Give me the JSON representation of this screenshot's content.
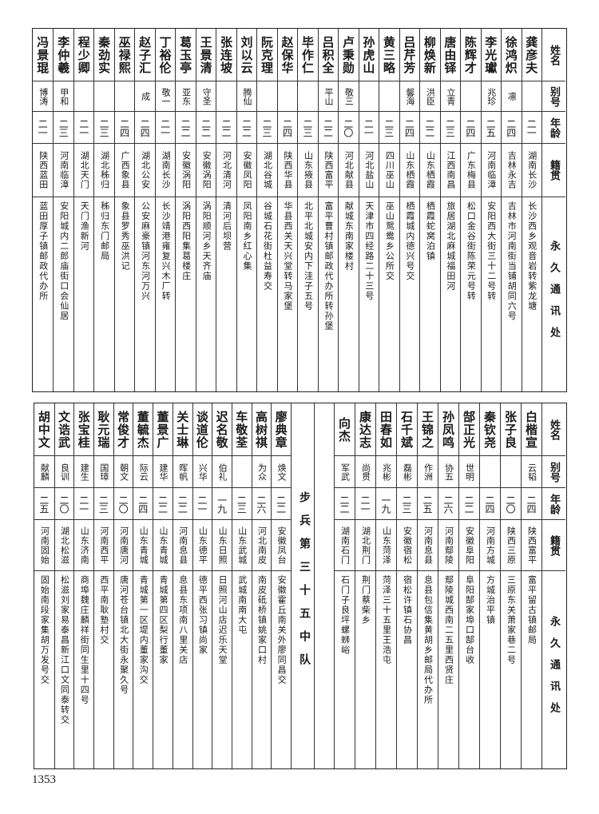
{
  "header": {
    "name": "姓名",
    "alias": "别号",
    "age": "年龄",
    "native": "籍贯",
    "address": "永久通讯处"
  },
  "top": [
    {
      "name": "龚彦夫",
      "alias": "",
      "age": "二一",
      "native": "湖南长沙",
      "address": "长沙西乡观音岩转紫龙塘"
    },
    {
      "name": "徐鸿炽",
      "alias": "凛",
      "age": "二四",
      "native": "吉林永吉",
      "address": "吉林市河南街当铺胡同六号"
    },
    {
      "name": "李光瓛",
      "alias": "兆珍",
      "age": "二五",
      "native": "河南临漳",
      "address": "安阳西大街三十二号转"
    },
    {
      "name": "陈辉才",
      "alias": "",
      "age": "二四",
      "native": "广东梅县",
      "address": "松口金谷街陈荣元号转"
    },
    {
      "name": "唐由铎",
      "alias": "立青",
      "age": "二三",
      "native": "江西南昌",
      "address": "旅居湖北麻城福田河"
    },
    {
      "name": "柳焕新",
      "alias": "洪臣",
      "age": "二二",
      "native": "山东栖霞",
      "address": "栖霞蛇窝泊镇"
    },
    {
      "name": "吕芹芳",
      "alias": "馨海",
      "age": "二四",
      "native": "山东栖霞",
      "address": "栖霞城内德兴号交"
    },
    {
      "name": "黄三略",
      "alias": "",
      "age": "二三",
      "native": "四川巫山",
      "address": "巫山鸳鸯乡公所交"
    },
    {
      "name": "孙虎山",
      "alias": "",
      "age": "二一",
      "native": "河北盐山",
      "address": "天津市四经路二十三号"
    },
    {
      "name": "卢秉勋",
      "alias": "敬三",
      "age": "二〇",
      "native": "河北献县",
      "address": "献城东南家楼村"
    },
    {
      "name": "吕积全",
      "alias": "平山",
      "age": "二二",
      "native": "陕西富平",
      "address": "富平曹村镇邮政代办所转孙堡"
    },
    {
      "name": "毕作仁",
      "alias": "",
      "age": "二三",
      "native": "山东掖县",
      "address": "北平北城安内下洼子五号"
    },
    {
      "name": "赵保华",
      "alias": "",
      "age": "二四",
      "native": "陕西华县",
      "address": "华县西关天兴堂转马家堡"
    },
    {
      "name": "阮克理",
      "alias": "",
      "age": "二三",
      "native": "湖北谷城",
      "address": "谷城石花街杜益寿交"
    },
    {
      "name": "刘以云",
      "alias": "腾仙",
      "age": "二二",
      "native": "安徽凤阳",
      "address": "凤阳南乡红心集"
    },
    {
      "name": "张连坡",
      "alias": "",
      "age": "二二",
      "native": "河北清河",
      "address": "清河后坝营"
    },
    {
      "name": "王景清",
      "alias": "守圣",
      "age": "二二",
      "native": "安徽涡阳",
      "address": "涡阳顺河乡天齐庙"
    },
    {
      "name": "葛玉亭",
      "alias": "亚东",
      "age": "二二",
      "native": "安徽涡阳",
      "address": "涡阳西阳集葛楼庄"
    },
    {
      "name": "丁裕伦",
      "alias": "敬一",
      "age": "二一",
      "native": "湖南长沙",
      "address": "长沙靖港雍复兴木厂转"
    },
    {
      "name": "赵子汇",
      "alias": "成",
      "age": "二四",
      "native": "湖北公安",
      "address": "公安麻豪镇河东河万兴"
    },
    {
      "name": "巫禄熙",
      "alias": "",
      "age": "二四",
      "native": "广西象县",
      "address": "象县罗秀巫洪记"
    },
    {
      "name": "秦劲实",
      "alias": "",
      "age": "二三",
      "native": "湖北秭归",
      "address": "秭归东门邮局"
    },
    {
      "name": "程少卿",
      "alias": "",
      "age": "二一",
      "native": "湖北天门",
      "address": "天门渔新河"
    },
    {
      "name": "李仲羲",
      "alias": "甲和",
      "age": "二三",
      "native": "河南临漳",
      "address": "安阳城内二郎庙街口会仙居"
    },
    {
      "name": "冯景琨",
      "alias": "博涛",
      "age": "二一",
      "native": "陕西蓝田",
      "address": "蓝田厚子镇邮政代办所"
    }
  ],
  "bottom_right": [
    {
      "name": "白楷宣",
      "alias": "云韬",
      "age": "二四",
      "native": "陕西富平",
      "address": "富平留古镇邮局"
    },
    {
      "name": "张子良",
      "alias": "",
      "age": "二〇",
      "native": "陕西三原",
      "address": "三原东关萧家巷二号"
    },
    {
      "name": "秦钦尧",
      "alias": "",
      "age": "二四",
      "native": "河南方城",
      "address": "方城治平镇"
    },
    {
      "name": "郜正光",
      "alias": "世明",
      "age": "二二",
      "native": "安徽阜阳",
      "address": "阜阳郜家埠口郜台收"
    },
    {
      "name": "孙凤鸣",
      "alias": "协五",
      "age": "二六",
      "native": "河南鄢陵",
      "address": "鄢陵城西南二五里西贤庄"
    },
    {
      "name": "王锦之",
      "alias": "作洲",
      "age": "二五",
      "native": "河南息县",
      "address": "息县包信集黄胡乡邮局代办所"
    },
    {
      "name": "石千斌",
      "alias": "磊彬",
      "age": "二三",
      "native": "安徽宿松",
      "address": "宿松许镇石协昌"
    },
    {
      "name": "田春如",
      "alias": "兆彬",
      "age": "一九",
      "native": "山东菏泽",
      "address": "菏泽三十五里王浩屯"
    },
    {
      "name": "康达志",
      "alias": "尚贯",
      "age": "二一",
      "native": "湖北荆门",
      "address": "荆门蔡柴乡"
    },
    {
      "name": "向杰",
      "alias": "军武",
      "age": "二二",
      "native": "湖南石门",
      "address": "石门子良坪螺蛳峪"
    }
  ],
  "unit_label": "步兵第三十五中队",
  "bottom_left": [
    {
      "name": "廖典章",
      "alias": "焕文",
      "age": "二二",
      "native": "安徽凤台",
      "address": "安徽霍丘南关外廖同昌交"
    },
    {
      "name": "高树祺",
      "alias": "为众",
      "age": "二六",
      "native": "河北南皮",
      "address": "南皮砥桥镇姚家口村"
    },
    {
      "name": "车敬荃",
      "alias": "",
      "age": "二三",
      "native": "山东武城",
      "address": "武城南南大屯"
    },
    {
      "name": "迟名敬",
      "alias": "伯礼",
      "age": "一九",
      "native": "山东日照",
      "address": "日照河山店迟乐天堂"
    },
    {
      "name": "谈道伦",
      "alias": "兴华",
      "age": "二一",
      "native": "山东德平",
      "address": "德平西张习镇尚家"
    },
    {
      "name": "关士琳",
      "alias": "晖帆",
      "age": "二二",
      "native": "河南息县",
      "address": "息县东项南八里关店"
    },
    {
      "name": "董景广",
      "alias": "建华",
      "age": "二二",
      "native": "山东青城",
      "address": "青城第四区梨行董家"
    },
    {
      "name": "董毓杰",
      "alias": "际云",
      "age": "二四",
      "native": "山东青城",
      "address": "青城第一区堤内董家沟交"
    },
    {
      "name": "常俊才",
      "alias": "朝文",
      "age": "二〇",
      "native": "河南唐河",
      "address": "唐河苍台镇北大街永聚久号"
    },
    {
      "name": "耿元瑞",
      "alias": "国璋",
      "age": "二三",
      "native": "河南西平",
      "address": "西平南耿塾村交"
    },
    {
      "name": "张宝桂",
      "alias": "建生",
      "age": "二一",
      "native": "山东济南",
      "address": "商埠魏庄麟祥街同生里十四号"
    },
    {
      "name": "文诰武",
      "alias": "良训",
      "age": "二〇",
      "native": "湖北松滋",
      "address": "松滋刘家易泰昌新江口文同泰转交"
    },
    {
      "name": "胡中文",
      "alias": "献麟",
      "age": "二五",
      "native": "河南固始",
      "address": "固始南段家集胡万发号交"
    }
  ],
  "page_number": "1353"
}
